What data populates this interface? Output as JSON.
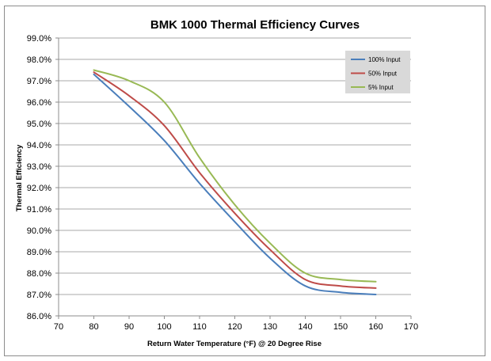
{
  "chart_data": {
    "type": "line",
    "title": "BMK 1000 Thermal Efficiency Curves",
    "xlabel": "Return Water Temperature (°F) @ 20 Degree Rise",
    "ylabel": "Thermal Efficiency",
    "xlim": [
      70,
      170
    ],
    "ylim": [
      86.0,
      99.0
    ],
    "x_ticks": [
      "70",
      "80",
      "90",
      "100",
      "110",
      "120",
      "130",
      "140",
      "150",
      "160",
      "170"
    ],
    "y_ticks": [
      "86.0%",
      "87.0%",
      "88.0%",
      "89.0%",
      "90.0%",
      "91.0%",
      "92.0%",
      "93.0%",
      "94.0%",
      "95.0%",
      "96.0%",
      "97.0%",
      "98.0%",
      "99.0%"
    ],
    "grid": "horizontal",
    "legend": "top-right",
    "x": [
      80,
      90,
      100,
      110,
      120,
      130,
      140,
      150,
      160
    ],
    "series": [
      {
        "name": "100% Input",
        "color": "#4a7ebb",
        "values": [
          97.3,
          95.8,
          94.2,
          92.2,
          90.4,
          88.7,
          87.4,
          87.1,
          87.0
        ]
      },
      {
        "name": "50% Input",
        "color": "#be4b48",
        "values": [
          97.4,
          96.3,
          94.9,
          92.7,
          90.8,
          89.1,
          87.7,
          87.4,
          87.3
        ]
      },
      {
        "name": "5% Input",
        "color": "#98b954",
        "values": [
          97.5,
          97.0,
          96.0,
          93.4,
          91.2,
          89.4,
          88.0,
          87.7,
          87.6
        ]
      }
    ]
  }
}
